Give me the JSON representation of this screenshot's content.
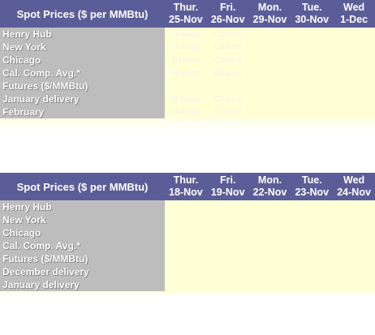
{
  "tables": [
    {
      "header": {
        "title": "Spot Prices ($ per MMBtu)",
        "columns": [
          {
            "day": "Thur.",
            "date": "25-Nov"
          },
          {
            "day": "Fri.",
            "date": "26-Nov"
          },
          {
            "day": "Mon.",
            "date": "29-Nov"
          },
          {
            "day": "Tue.",
            "date": "30-Nov"
          },
          {
            "day": "Wed",
            "date": "1-Dec"
          }
        ]
      },
      "rows": [
        {
          "label": "Henry Hub",
          "cells": [
            "Holiday",
            "Closed",
            "",
            "",
            ""
          ]
        },
        {
          "label": "New York",
          "cells": [
            "Holiday",
            "Closed",
            "",
            "",
            ""
          ]
        },
        {
          "label": "Chicago",
          "cells": [
            "Holiday",
            "Closed",
            "",
            "",
            ""
          ]
        },
        {
          "label": "Cal. Comp. Avg.*",
          "cells": [
            "Holiday",
            "Closed",
            "",
            "",
            ""
          ]
        },
        {
          "label": "Futures ($/MMBtu)",
          "cells": [
            "",
            "",
            "",
            "",
            ""
          ]
        },
        {
          "label": "January delivery",
          "cells": [
            "Holiday",
            "Closed",
            "",
            "",
            ""
          ]
        },
        {
          "label": "February",
          "cells": [
            "Holiday",
            "Closed",
            "",
            "",
            ""
          ]
        }
      ]
    },
    {
      "header": {
        "title": "Spot Prices ($ per MMBtu)",
        "columns": [
          {
            "day": "Thur.",
            "date": "18-Nov"
          },
          {
            "day": "Fri.",
            "date": "19-Nov"
          },
          {
            "day": "Mon.",
            "date": "22-Nov"
          },
          {
            "day": "Tue.",
            "date": "23-Nov"
          },
          {
            "day": "Wed",
            "date": "24-Nov"
          }
        ]
      },
      "rows": [
        {
          "label": "Henry Hub",
          "cells": [
            "",
            "",
            "",
            "",
            ""
          ]
        },
        {
          "label": "New York",
          "cells": [
            "",
            "",
            "",
            "",
            ""
          ]
        },
        {
          "label": "Chicago",
          "cells": [
            "",
            "",
            "",
            "",
            ""
          ]
        },
        {
          "label": "Cal. Comp. Avg.*",
          "cells": [
            "",
            "",
            "",
            "",
            ""
          ]
        },
        {
          "label": "Futures ($/MMBtu)",
          "cells": [
            "",
            "",
            "",
            "",
            ""
          ]
        },
        {
          "label": "December delivery",
          "cells": [
            "",
            "",
            "",
            "",
            ""
          ]
        },
        {
          "label": "January delivery",
          "cells": [
            "",
            "",
            "",
            "",
            ""
          ]
        }
      ]
    }
  ]
}
